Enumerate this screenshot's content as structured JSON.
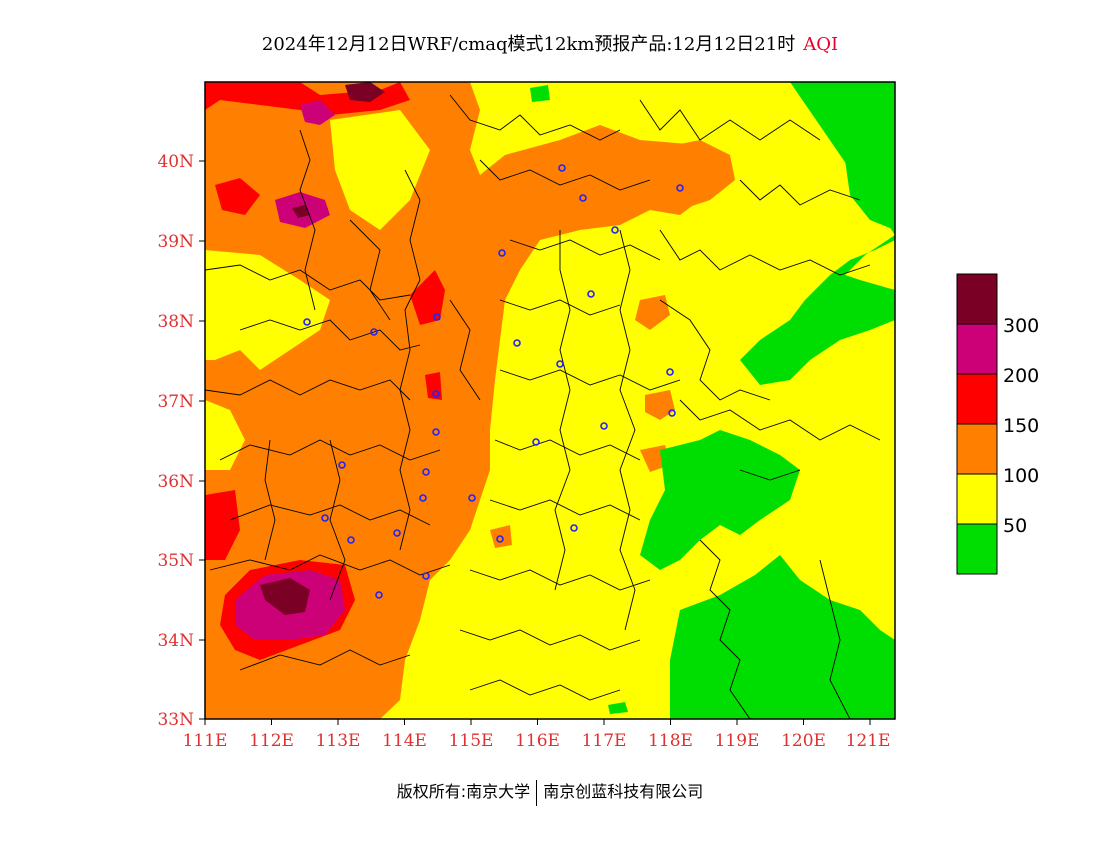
{
  "title": {
    "main": "2024年12月12日WRF/cmaq模式12km预报产品:12月12日21时",
    "variable": "AQI"
  },
  "axes": {
    "x_ticks": [
      "111E",
      "112E",
      "113E",
      "114E",
      "115E",
      "116E",
      "117E",
      "118E",
      "119E",
      "120E",
      "121E"
    ],
    "y_ticks": [
      "40N",
      "39N",
      "38N",
      "37N",
      "36N",
      "35N",
      "34N",
      "33N"
    ],
    "lon_range": [
      111,
      121.4
    ],
    "lat_range": [
      33,
      41
    ]
  },
  "legend": {
    "levels": [
      "300",
      "200",
      "150",
      "100",
      "50"
    ],
    "colors": [
      "#7a0026",
      "#cc0077",
      "#ff0000",
      "#ff8000",
      "#ffff00",
      "#00dd00"
    ]
  },
  "copyright": {
    "left": "版权所有:南京大学",
    "right": "南京创蓝科技有限公司"
  }
}
